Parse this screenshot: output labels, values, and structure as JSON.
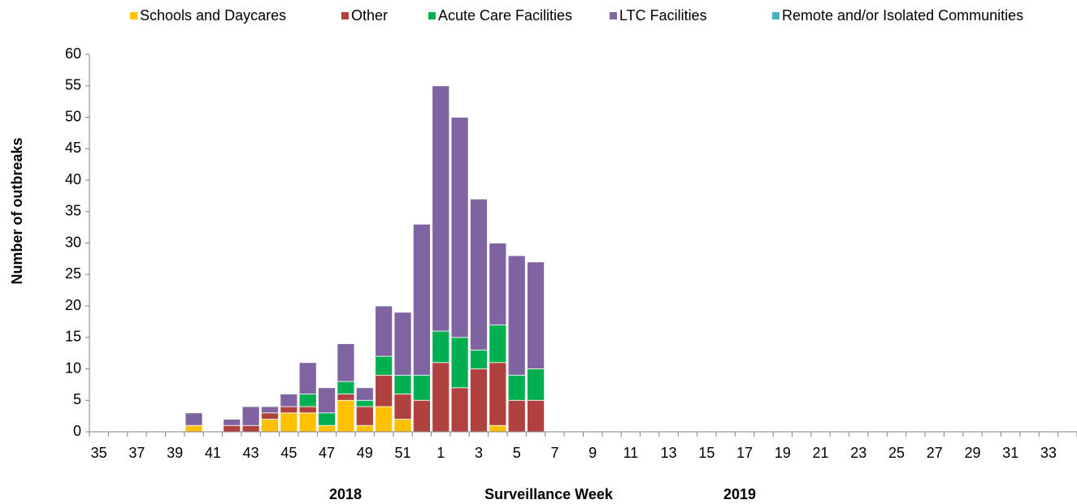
{
  "chart_data": {
    "type": "stacked_bar",
    "y_label": "Number of outbreaks",
    "x_label": "Surveillance Week",
    "annotations": [
      "2018",
      "2019"
    ],
    "categories": [
      "35",
      null,
      "37",
      null,
      "39",
      null,
      "41",
      null,
      "43",
      null,
      "45",
      null,
      "47",
      null,
      "49",
      null,
      "51",
      null,
      "1",
      null,
      "3",
      null,
      "5",
      null,
      "7",
      null,
      "9",
      null,
      "11",
      null,
      "13",
      null,
      "15",
      null,
      "17",
      null,
      "19",
      null,
      "21",
      null,
      "23",
      null,
      "25",
      null,
      "27",
      null,
      "29",
      null,
      "31",
      null,
      "33",
      null
    ],
    "series": [
      {
        "name": "Schools and Daycares",
        "color": "#ffc000",
        "values": [
          0,
          0,
          0,
          0,
          0,
          1,
          0,
          0,
          0,
          2,
          3,
          3,
          1,
          5,
          1,
          4,
          2,
          0,
          0,
          0,
          0,
          1,
          0,
          0,
          0,
          0,
          0,
          0,
          0,
          0,
          0,
          0,
          0,
          0,
          0,
          0,
          0,
          0,
          0,
          0,
          0,
          0,
          0,
          0,
          0,
          0,
          0,
          0,
          0,
          0,
          0,
          0
        ]
      },
      {
        "name": "Other",
        "color": "#b0413e",
        "values": [
          0,
          0,
          0,
          0,
          0,
          0,
          0,
          1,
          1,
          1,
          1,
          1,
          0,
          1,
          3,
          5,
          4,
          5,
          11,
          7,
          10,
          10,
          5,
          5,
          0,
          0,
          0,
          0,
          0,
          0,
          0,
          0,
          0,
          0,
          0,
          0,
          0,
          0,
          0,
          0,
          0,
          0,
          0,
          0,
          0,
          0,
          0,
          0,
          0,
          0,
          0,
          0
        ]
      },
      {
        "name": "Acute Care Facilities",
        "color": "#00b050",
        "values": [
          0,
          0,
          0,
          0,
          0,
          0,
          0,
          0,
          0,
          0,
          0,
          2,
          2,
          2,
          1,
          3,
          3,
          4,
          5,
          8,
          3,
          6,
          4,
          5,
          0,
          0,
          0,
          0,
          0,
          0,
          0,
          0,
          0,
          0,
          0,
          0,
          0,
          0,
          0,
          0,
          0,
          0,
          0,
          0,
          0,
          0,
          0,
          0,
          0,
          0,
          0,
          0
        ]
      },
      {
        "name": "LTC Facilities",
        "color": "#8064a2",
        "values": [
          0,
          0,
          0,
          0,
          0,
          2,
          0,
          1,
          3,
          1,
          2,
          5,
          4,
          6,
          2,
          8,
          10,
          24,
          39,
          35,
          24,
          13,
          19,
          17,
          0,
          0,
          0,
          0,
          0,
          0,
          0,
          0,
          0,
          0,
          0,
          0,
          0,
          0,
          0,
          0,
          0,
          0,
          0,
          0,
          0,
          0,
          0,
          0,
          0,
          0,
          0,
          0
        ]
      },
      {
        "name": "Remote and/or Isolated Communities",
        "color": "#4bacc6",
        "values": [
          0,
          0,
          0,
          0,
          0,
          0,
          0,
          0,
          0,
          0,
          0,
          0,
          0,
          0,
          0,
          0,
          0,
          0,
          0,
          0,
          0,
          0,
          0,
          0,
          0,
          0,
          0,
          0,
          0,
          0,
          0,
          0,
          0,
          0,
          0,
          0,
          0,
          0,
          0,
          0,
          0,
          0,
          0,
          0,
          0,
          0,
          0,
          0,
          0,
          0,
          0,
          0
        ]
      }
    ],
    "ylim": [
      0,
      60
    ],
    "yticks": [
      0,
      5,
      10,
      15,
      20,
      25,
      30,
      35,
      40,
      45,
      50,
      55,
      60
    ],
    "grid": false,
    "legend": "top"
  }
}
